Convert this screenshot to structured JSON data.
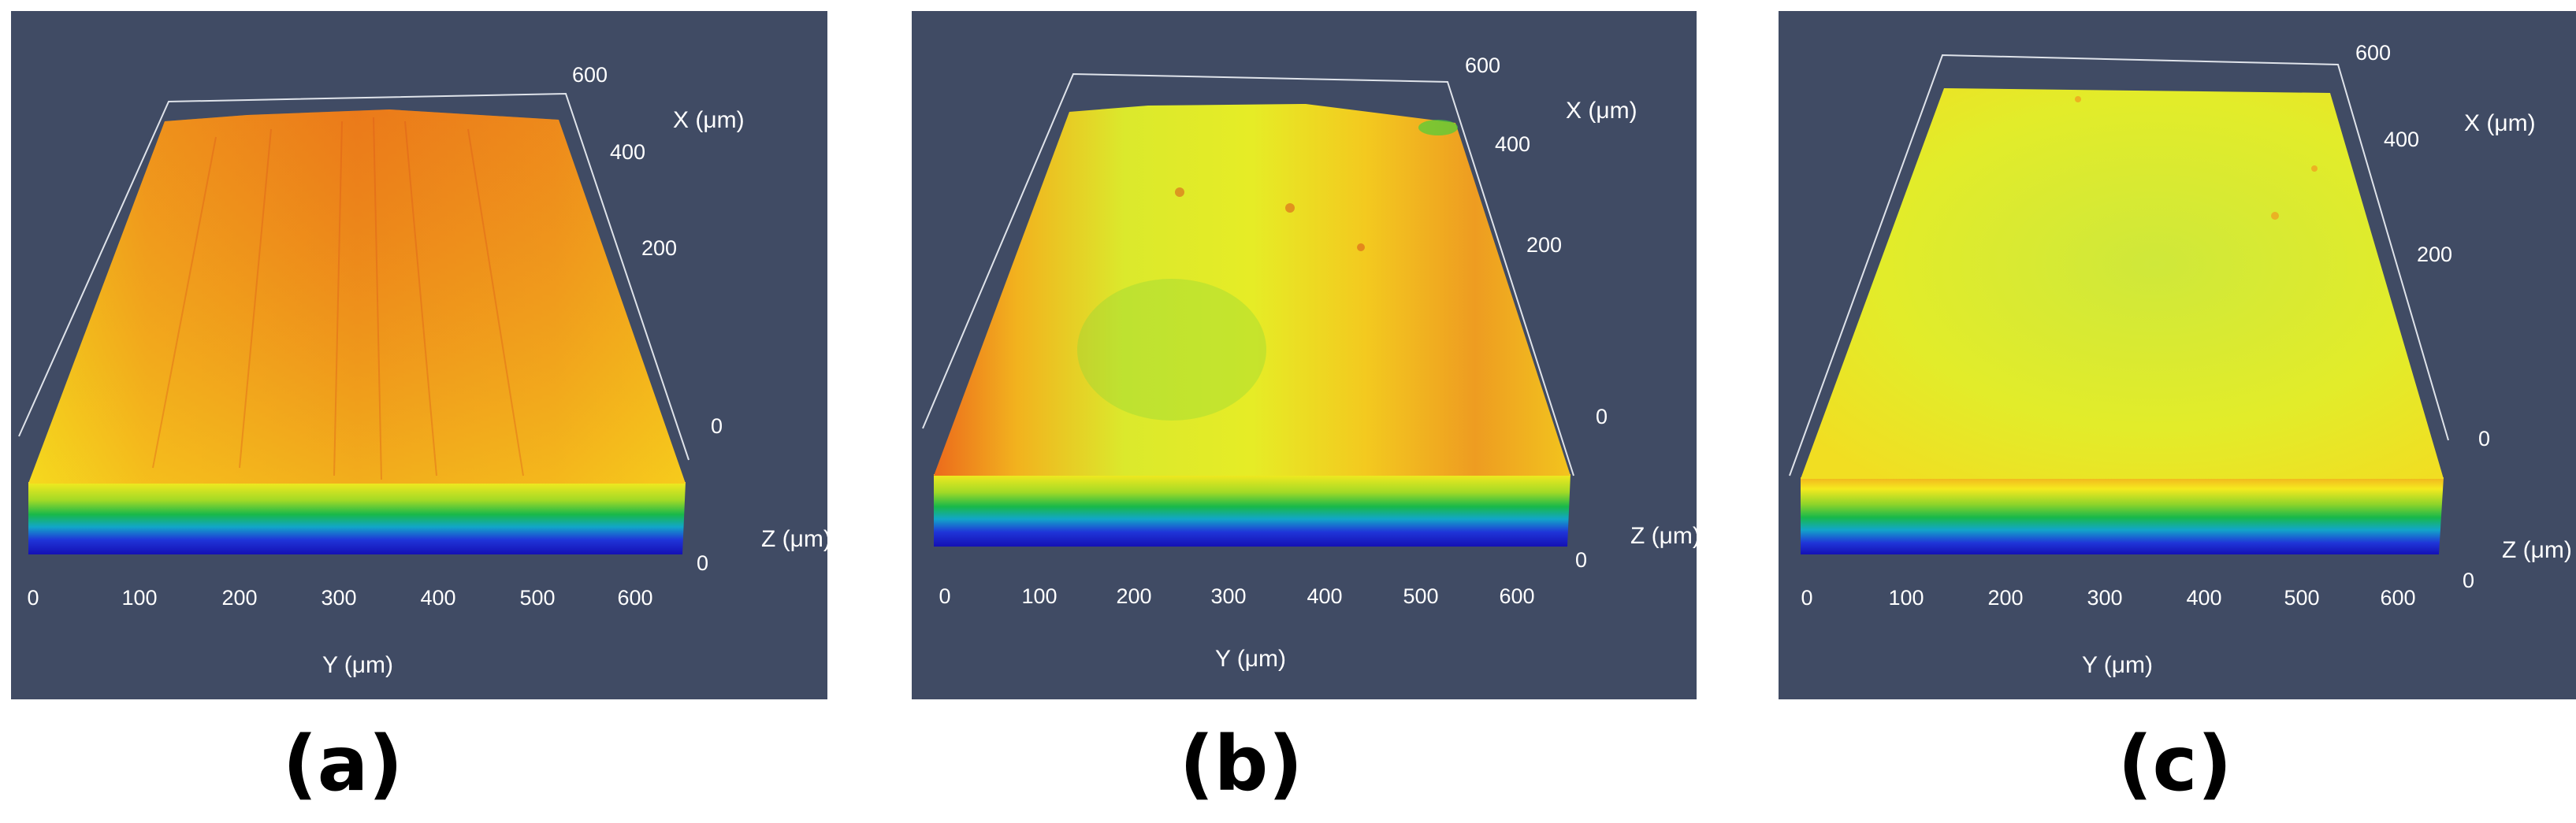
{
  "panels": [
    {
      "caption": "(a)",
      "x_axis_label": "X (μm)",
      "y_axis_label": "Y (μm)",
      "z_axis_label": "Z (μm)",
      "x_ticks": [
        "0",
        "200",
        "400",
        "600"
      ],
      "y_ticks": [
        "0",
        "100",
        "200",
        "300",
        "400",
        "500",
        "600"
      ],
      "z_ticks": [
        "0",
        "0"
      ],
      "surface_colors": [
        "#f7c319",
        "#f29a1b",
        "#e9701a"
      ]
    },
    {
      "caption": "(b)",
      "x_axis_label": "X (μm)",
      "y_axis_label": "Y (μm)",
      "z_axis_label": "Z (μm)",
      "x_ticks": [
        "0",
        "200",
        "400",
        "600"
      ],
      "y_ticks": [
        "0",
        "100",
        "200",
        "300",
        "400",
        "500",
        "600"
      ],
      "z_ticks": [
        "0",
        "0"
      ],
      "surface_colors": [
        "#e3ea2a",
        "#f5d81e",
        "#ec8b21"
      ]
    },
    {
      "caption": "(c)",
      "x_axis_label": "X (μm)",
      "y_axis_label": "Y (μm)",
      "z_axis_label": "Z (μm)",
      "x_ticks": [
        "0",
        "200",
        "400",
        "600"
      ],
      "y_ticks": [
        "0",
        "100",
        "200",
        "300",
        "400",
        "500",
        "600"
      ],
      "z_ticks": [
        "0",
        "0"
      ],
      "surface_colors": [
        "#d8ea2c",
        "#e9ec24",
        "#f2d01f"
      ]
    }
  ],
  "colors": {
    "panel_background": "#404b64",
    "base_gradient": [
      "#f5ea1f",
      "#7fd22a",
      "#18b84a",
      "#12a6c8",
      "#1f35d8",
      "#1410b4"
    ],
    "text": "#ffffff"
  }
}
